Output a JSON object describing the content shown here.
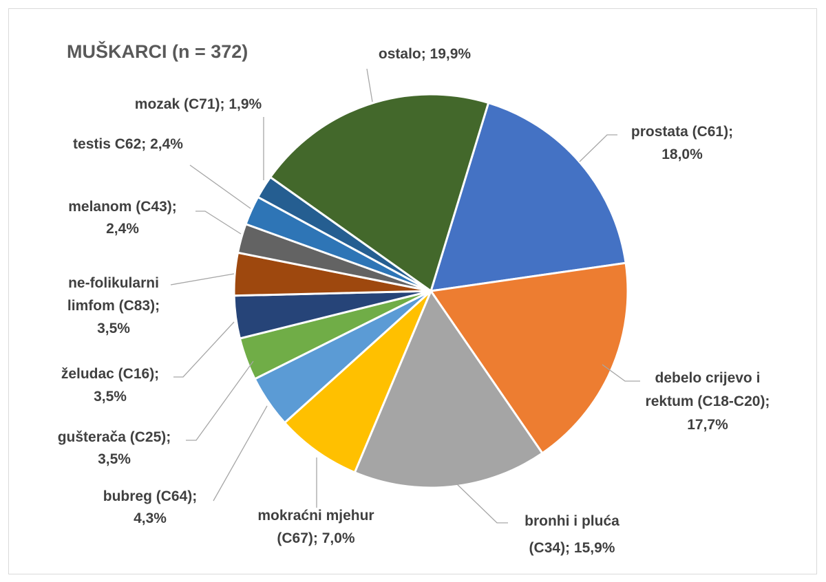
{
  "chart_data": {
    "type": "pie",
    "title": "MUŠKARCI (n = 372)",
    "start_angle_deg": 17,
    "direction": "clockwise",
    "slices": [
      {
        "label": "prostata (C61)",
        "value": 18.0,
        "text": "18,0%",
        "color": "#4472C4"
      },
      {
        "label": "debelo crijevo i rektum (C18-C20)",
        "value": 17.7,
        "text": "17,7%",
        "color": "#ED7D31"
      },
      {
        "label": "bronhi i pluća (C34)",
        "value": 15.9,
        "text": "15,9%",
        "color": "#A5A5A5"
      },
      {
        "label": "mokraćni mjehur (C67)",
        "value": 7.0,
        "text": "7,0%",
        "color": "#FFC000"
      },
      {
        "label": "bubreg (C64)",
        "value": 4.3,
        "text": "4,3%",
        "color": "#5B9BD5"
      },
      {
        "label": "gušterača (C25)",
        "value": 3.5,
        "text": "3,5%",
        "color": "#70AD47"
      },
      {
        "label": "želudac (C16)",
        "value": 3.5,
        "text": "3,5%",
        "color": "#264478"
      },
      {
        "label": "ne-folikularni limfom (C83)",
        "value": 3.5,
        "text": "3,5%",
        "color": "#9E480E"
      },
      {
        "label": "melanom (C43)",
        "value": 2.4,
        "text": "2,4%",
        "color": "#636363"
      },
      {
        "label": "testis C62",
        "value": 2.4,
        "text": "2,4%",
        "color": "#2E75B6"
      },
      {
        "label": "mozak (C71)",
        "value": 1.9,
        "text": "1,9%",
        "color": "#255E91"
      },
      {
        "label": "ostalo",
        "value": 19.9,
        "text": "19,9%",
        "color": "#43682B"
      }
    ],
    "data_labels": {
      "prostata": [
        "prostata (C61);",
        "18,0%"
      ],
      "debelo": [
        "debelo crijevo i",
        "rektum (C18-C20);",
        "17,7%"
      ],
      "bronhi": [
        "bronhi i pluća",
        "(C34); 15,9%"
      ],
      "mokracni": [
        "mokraćni mjehur",
        "(C67); 7,0%"
      ],
      "bubreg": [
        "bubreg (C64);",
        "4,3%"
      ],
      "gusteraca": [
        "gušterača (C25);",
        "3,5%"
      ],
      "zeludac": [
        "želudac (C16);",
        "3,5%"
      ],
      "limfom": [
        "ne-folikularni",
        "limfom (C83);",
        "3,5%"
      ],
      "melanom": [
        "melanom (C43);",
        "2,4%"
      ],
      "testis": [
        "testis C62; 2,4%"
      ],
      "mozak": [
        "mozak (C71); 1,9%"
      ],
      "ostalo": [
        "ostalo; 19,9%"
      ]
    },
    "legend": "none"
  }
}
